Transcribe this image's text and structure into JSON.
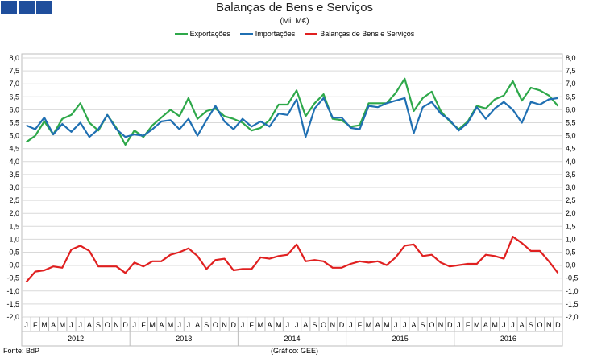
{
  "header": {
    "title": "Balanças de Bens e Serviços",
    "subtitle": "(Mil M€)"
  },
  "footer": {
    "source": "Fonte: BdP",
    "credit": "(Gráfico: GEE)"
  },
  "colors": {
    "exports": "#2ea84a",
    "imports": "#1f6fb2",
    "balance": "#e02020",
    "logo": "#1f4e9c"
  },
  "chart_data": {
    "type": "line",
    "title": "Balanças de Bens e Serviços",
    "subtitle": "(Mil M€)",
    "ylim": [
      -2.0,
      8.0
    ],
    "yticks": [
      "8,0",
      "7,5",
      "7,0",
      "6,5",
      "6,0",
      "5,5",
      "5,0",
      "4,5",
      "4,0",
      "3,5",
      "3,0",
      "2,5",
      "2,0",
      "1,5",
      "1,0",
      "0,5",
      "0,0",
      "-0,5",
      "-1,0",
      "-1,5",
      "-2,0"
    ],
    "grid": true,
    "legend": "top-center",
    "month_labels": [
      "J",
      "F",
      "M",
      "A",
      "M",
      "J",
      "J",
      "A",
      "S",
      "O",
      "N",
      "D"
    ],
    "years": [
      "2012",
      "2013",
      "2014",
      "2015",
      "2016"
    ],
    "series": [
      {
        "name": "Exportações",
        "color": "#2ea84a",
        "values": [
          4.75,
          5.0,
          5.55,
          5.05,
          5.65,
          5.8,
          6.25,
          5.5,
          5.2,
          5.8,
          5.3,
          4.65,
          5.2,
          4.95,
          5.4,
          5.7,
          6.0,
          5.75,
          6.45,
          5.65,
          5.95,
          6.05,
          5.75,
          5.65,
          5.5,
          5.2,
          5.3,
          5.6,
          6.2,
          6.2,
          6.75,
          5.75,
          6.25,
          6.6,
          5.65,
          5.6,
          5.35,
          5.4,
          6.25,
          6.25,
          6.25,
          6.65,
          7.2,
          5.95,
          6.45,
          6.7,
          5.95,
          5.55,
          5.25,
          5.55,
          6.15,
          6.05,
          6.4,
          6.55,
          7.1,
          6.35,
          6.85,
          6.75,
          6.55,
          6.15
        ]
      },
      {
        "name": "Importações",
        "color": "#1f6fb2",
        "values": [
          5.4,
          5.25,
          5.7,
          5.05,
          5.45,
          5.15,
          5.5,
          4.95,
          5.25,
          5.8,
          5.25,
          4.95,
          5.05,
          5.0,
          5.25,
          5.55,
          5.6,
          5.25,
          5.65,
          5.0,
          5.6,
          6.15,
          5.55,
          5.25,
          5.65,
          5.35,
          5.55,
          5.35,
          5.85,
          5.8,
          6.4,
          4.95,
          6.05,
          6.45,
          5.7,
          5.7,
          5.3,
          5.25,
          6.15,
          6.1,
          6.25,
          6.35,
          6.45,
          5.1,
          6.1,
          6.3,
          5.85,
          5.6,
          5.2,
          5.5,
          6.1,
          5.65,
          6.05,
          6.3,
          6.0,
          5.5,
          6.3,
          6.2,
          6.4,
          6.45
        ]
      },
      {
        "name": "Balanças de Bens e Serviços",
        "color": "#e02020",
        "values": [
          -0.65,
          -0.25,
          -0.2,
          -0.05,
          -0.1,
          0.6,
          0.75,
          0.55,
          -0.05,
          -0.05,
          -0.05,
          -0.3,
          0.1,
          -0.05,
          0.15,
          0.15,
          0.4,
          0.5,
          0.65,
          0.35,
          -0.15,
          0.2,
          0.25,
          -0.2,
          -0.15,
          -0.15,
          0.3,
          0.25,
          0.35,
          0.4,
          0.8,
          0.15,
          0.2,
          0.15,
          -0.1,
          -0.1,
          0.05,
          0.15,
          0.1,
          0.15,
          0.0,
          0.3,
          0.75,
          0.8,
          0.35,
          0.4,
          0.1,
          -0.05,
          0.0,
          0.05,
          0.05,
          0.4,
          0.35,
          0.25,
          1.1,
          0.85,
          0.55,
          0.55,
          0.15,
          -0.3
        ]
      }
    ]
  }
}
